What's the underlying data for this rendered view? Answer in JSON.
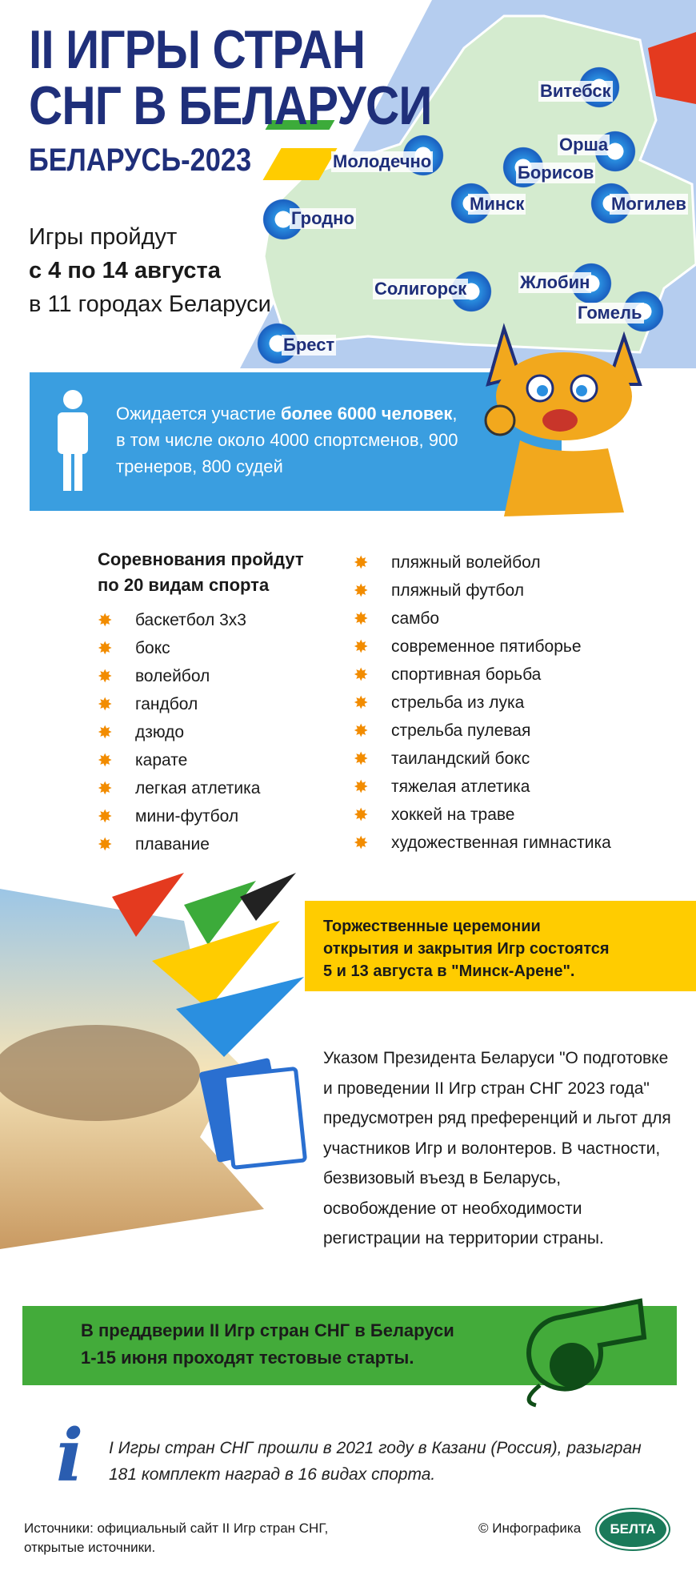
{
  "header": {
    "title_line1": "II ИГРЫ СТРАН",
    "title_line2": "СНГ В БЕЛАРУСИ",
    "subtitle": "БЕЛАРУСЬ-2023"
  },
  "dates": {
    "line1": "Игры пройдут",
    "line2": "с 4 по 14 августа",
    "line3": "в 11 городах Беларуси"
  },
  "map": {
    "cities": [
      "Витебск",
      "Орша",
      "Молодечно",
      "Борисов",
      "Минск",
      "Могилев",
      "Гродно",
      "Солигорск",
      "Жлобин",
      "Гомель",
      "Брест"
    ]
  },
  "participants": {
    "text_pre": "Ожидается участие ",
    "text_bold": "более 6000 человек",
    "text_post": ", в том числе около 4000 спортсменов, 900 тренеров, 800 судей",
    "icon": "person-icon"
  },
  "sports": {
    "heading_line1": "Соревнования пройдут",
    "heading_line2": "по 20 видам спорта",
    "left": [
      "баскетбол 3х3",
      "бокс",
      "волейбол",
      "гандбол",
      "дзюдо",
      "карате",
      "легкая атлетика",
      "мини-футбол",
      "плавание"
    ],
    "right": [
      "пляжный волейбол",
      "пляжный футбол",
      "самбо",
      "современное пятиборье",
      "спортивная борьба",
      "стрельба из лука",
      "стрельба пулевая",
      "таиландский бокс",
      "тяжелая атлетика",
      "хоккей на траве",
      "художественная гимнастика"
    ]
  },
  "ceremony": {
    "line1": "Торжественные церемонии",
    "line2": "открытия и закрытия Игр состоятся",
    "line3": "5 и 13 августа в \"Минск-Арене\"."
  },
  "decree": {
    "text": "Указом Президента Беларуси \"О подготовке и проведении II Игр стран СНГ 2023 года\" предусмотрен ряд преференций и льгот для участников Игр и волонтеров. В частности, безвизовый въезд в Беларусь, освобождение от необходимости регистрации на территории страны."
  },
  "tests": {
    "line1": "В преддверии II Игр стран СНГ в Беларуси",
    "line2": "1-15 июня проходят тестовые старты.",
    "icon": "whistle-icon"
  },
  "info": {
    "line1": "I Игры стран СНГ прошли в 2021 году в Казани (Россия), разыгран",
    "line2": "181 комплект наград в 16 видах спорта.",
    "icon": "info-icon"
  },
  "footer": {
    "sources_line1": "Источники: официальный сайт II Игр стран СНГ,",
    "sources_line2": "открытые источники.",
    "credit": "© Инфографика",
    "logo": "БЕЛТА"
  },
  "colors": {
    "navy": "#1f2f7a",
    "blue": "#3a9ee0",
    "yellow": "#ffcc00",
    "green": "#43ab3a",
    "orange": "#f28c00"
  }
}
